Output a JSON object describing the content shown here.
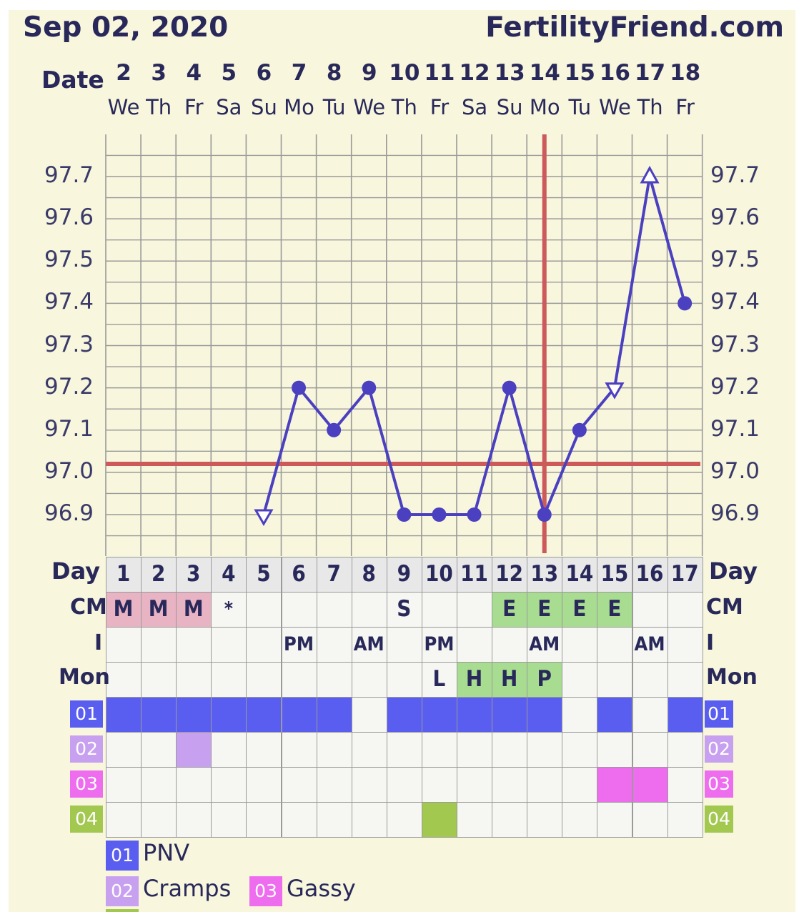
{
  "header": {
    "date": "Sep 02, 2020",
    "site": "FertilityFriend.com"
  },
  "labels": {
    "date": "Date",
    "day": "Day",
    "cm": "CM",
    "i": "I",
    "mon": "Mon"
  },
  "dates": [
    "2",
    "3",
    "4",
    "5",
    "6",
    "7",
    "8",
    "9",
    "10",
    "11",
    "12",
    "13",
    "14",
    "15",
    "16",
    "17",
    "18"
  ],
  "weekdays": [
    "We",
    "Th",
    "Fr",
    "Sa",
    "Su",
    "Mo",
    "Tu",
    "We",
    "Th",
    "Fr",
    "Sa",
    "Su",
    "Mo",
    "Tu",
    "We",
    "Th",
    "Fr"
  ],
  "cycle_days": [
    "1",
    "2",
    "3",
    "4",
    "5",
    "6",
    "7",
    "8",
    "9",
    "10",
    "11",
    "12",
    "13",
    "14",
    "15",
    "16",
    "17"
  ],
  "yticks": [
    "97.7",
    "97.6",
    "97.5",
    "97.4",
    "97.3",
    "97.2",
    "97.1",
    "97.0",
    "96.9"
  ],
  "cm_row": [
    "M",
    "M",
    "M",
    "*",
    "",
    "",
    "",
    "",
    "S",
    "",
    "",
    "E",
    "E",
    "E",
    "E",
    "",
    ""
  ],
  "i_row": [
    "",
    "",
    "",
    "",
    "",
    "PM",
    "",
    "AM",
    "",
    "PM",
    "",
    "",
    "AM",
    "",
    "",
    "AM",
    ""
  ],
  "mon_row": [
    "",
    "",
    "",
    "",
    "",
    "",
    "",
    "",
    "",
    "L",
    "H",
    "H",
    "P",
    "",
    "",
    "",
    ""
  ],
  "symptom_rows": [
    {
      "code": "01",
      "color": "#5a5ef0",
      "days": [
        1,
        1,
        1,
        1,
        1,
        1,
        1,
        0,
        1,
        1,
        1,
        1,
        1,
        0,
        1,
        0,
        1
      ]
    },
    {
      "code": "02",
      "color": "#c8a0f0",
      "days": [
        0,
        0,
        1,
        0,
        0,
        0,
        0,
        0,
        0,
        0,
        0,
        0,
        0,
        0,
        0,
        0,
        0
      ]
    },
    {
      "code": "03",
      "color": "#ee6cee",
      "days": [
        0,
        0,
        0,
        0,
        0,
        0,
        0,
        0,
        0,
        0,
        0,
        0,
        0,
        0,
        1,
        1,
        0
      ]
    },
    {
      "code": "04",
      "color": "#a2c850",
      "days": [
        0,
        0,
        0,
        0,
        0,
        0,
        0,
        0,
        0,
        1,
        0,
        0,
        0,
        0,
        0,
        0,
        0
      ]
    }
  ],
  "legend": [
    {
      "code": "01",
      "label": "PNV",
      "color": "#5a5ef0"
    },
    {
      "code": "02",
      "label": "Cramps",
      "color": "#c8a0f0"
    },
    {
      "code": "03",
      "label": "Gassy",
      "color": "#ee6cee"
    }
  ],
  "chart_data": {
    "type": "line",
    "x": [
      "2",
      "3",
      "4",
      "5",
      "6",
      "7",
      "8",
      "9",
      "10",
      "11",
      "12",
      "13",
      "14",
      "15",
      "16",
      "17",
      "18"
    ],
    "series": [
      {
        "values": [
          null,
          null,
          null,
          null,
          96.9,
          97.2,
          97.1,
          97.2,
          96.9,
          96.9,
          96.9,
          97.2,
          96.9,
          97.1,
          97.2,
          97.7,
          97.4
        ],
        "markers": [
          "",
          "",
          "",
          "",
          "open-triangle",
          "dot",
          "dot",
          "dot",
          "dot",
          "dot",
          "dot",
          "dot",
          "dot",
          "dot",
          "open-triangle",
          "open-triangle",
          "dot"
        ]
      }
    ],
    "coverline": 97.02,
    "ovulation_day_index": 12,
    "ylim": [
      96.8,
      97.8
    ],
    "grid": true,
    "colors": {
      "line": "#4a40c0",
      "coverline": "#cc5a5a",
      "grid": "#9a9a9a"
    }
  }
}
